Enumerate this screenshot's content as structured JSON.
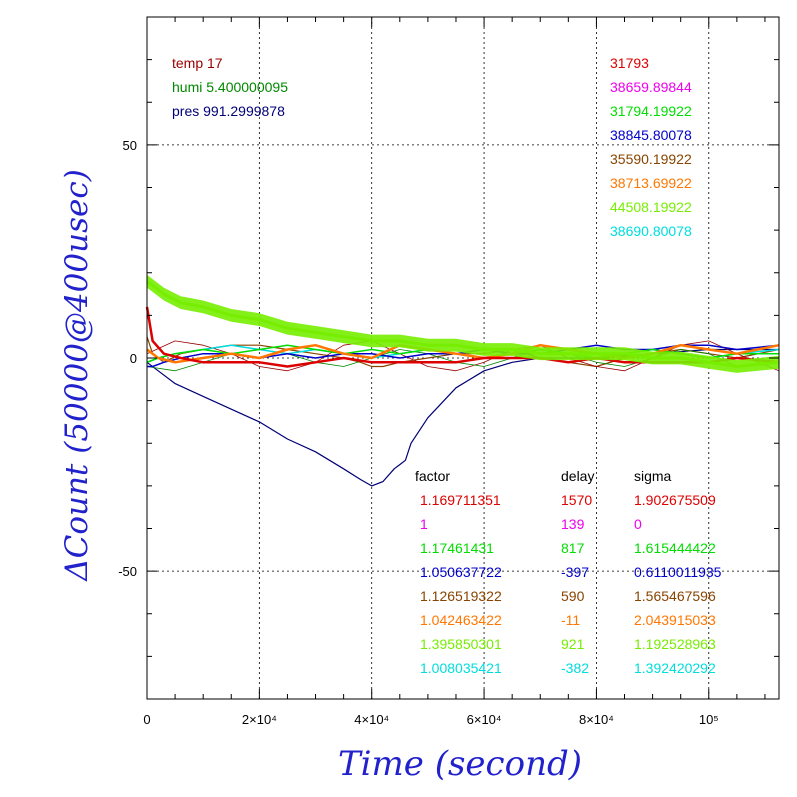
{
  "chart_data": {
    "type": "line",
    "xlabel": "Time (second)",
    "ylabel": "ΔCount (50000@400usec)",
    "xlim": [
      0,
      112500
    ],
    "ylim": [
      -80,
      80
    ],
    "grid": true,
    "x_ticks": [
      {
        "value": 0,
        "label": "0"
      },
      {
        "value": 20000,
        "label": "2×10⁴"
      },
      {
        "value": 40000,
        "label": "4×10⁴"
      },
      {
        "value": 60000,
        "label": "6×10⁴"
      },
      {
        "value": 80000,
        "label": "8×10⁴"
      },
      {
        "value": 100000,
        "label": "10⁵"
      }
    ],
    "y_ticks": [
      {
        "value": 50,
        "label": "50"
      },
      {
        "value": 0,
        "label": "0"
      },
      {
        "value": -50,
        "label": "-50"
      }
    ],
    "env": [
      {
        "text": "temp 17",
        "color": "#990000"
      },
      {
        "text": "humi 5.400000095",
        "color": "#008800"
      },
      {
        "text": "pres 991.2999878",
        "color": "#000077"
      }
    ],
    "counts": [
      {
        "text": "31793",
        "color": "#dd0000"
      },
      {
        "text": "38659.89844",
        "color": "#ee00ee"
      },
      {
        "text": "31794.19922",
        "color": "#00dd00"
      },
      {
        "text": "38845.80078",
        "color": "#0000cc"
      },
      {
        "text": "35590.19922",
        "color": "#884400"
      },
      {
        "text": "38713.69922",
        "color": "#ff7700"
      },
      {
        "text": "44508.19922",
        "color": "#77ee00"
      },
      {
        "text": "38690.80078",
        "color": "#00dddd"
      }
    ],
    "table_headers": {
      "factor": "factor",
      "delay": "delay",
      "sigma": "sigma"
    },
    "table_rows": [
      {
        "factor": "1.169711351",
        "delay": "1570",
        "sigma": "1.902675509",
        "color": "#dd0000"
      },
      {
        "factor": "1",
        "delay": "139",
        "sigma": "0",
        "color": "#ee00ee"
      },
      {
        "factor": "1.17461431",
        "delay": "817",
        "sigma": "1.615444422",
        "color": "#00dd00"
      },
      {
        "factor": "1.050637722",
        "delay": "-397",
        "sigma": "0.6110011935",
        "color": "#0000cc"
      },
      {
        "factor": "1.126519322",
        "delay": "590",
        "sigma": "1.565467596",
        "color": "#884400"
      },
      {
        "factor": "1.042463422",
        "delay": "-11",
        "sigma": "2.043915033",
        "color": "#ff7700"
      },
      {
        "factor": "1.395850301",
        "delay": "921",
        "sigma": "1.192528963",
        "color": "#77ee00"
      },
      {
        "factor": "1.008035421",
        "delay": "-382",
        "sigma": "1.392420292",
        "color": "#00dddd"
      }
    ],
    "series": [
      {
        "color": "#000077",
        "width": 1.2,
        "x": [
          0,
          2000,
          5000,
          10000,
          15000,
          20000,
          25000,
          30000,
          35000,
          38000,
          40000,
          42000,
          44000,
          45000,
          46000,
          47000,
          50000,
          55000,
          60000,
          65000,
          70000,
          80000,
          90000,
          100000,
          112500
        ],
        "y": [
          -1,
          -3,
          -6,
          -9,
          -12,
          -15,
          -19,
          -22,
          -26,
          -28.5,
          -30,
          -29,
          -26,
          -25,
          -24,
          -20,
          -14,
          -7,
          -3,
          -1,
          0,
          0,
          1,
          2,
          2
        ]
      },
      {
        "color": "#884400",
        "width": 1.2,
        "x": [
          0,
          1000,
          3000,
          6000,
          10000,
          15000,
          20000,
          25000,
          30000,
          35000,
          38000,
          40000,
          42000,
          45000,
          50000,
          55000,
          60000,
          65000,
          70000,
          75000,
          80000,
          85000,
          90000,
          95000,
          100000,
          105000,
          112500
        ],
        "y": [
          5,
          1,
          -1,
          1,
          2,
          3,
          3,
          2,
          1,
          0,
          -1,
          -2,
          -2,
          -1,
          0,
          1,
          1,
          2,
          0,
          -1,
          -2,
          0,
          1,
          2,
          1,
          0,
          2
        ]
      },
      {
        "color": "#990000",
        "width": 0.8,
        "x": [
          0,
          5000,
          10000,
          15000,
          20000,
          25000,
          30000,
          35000,
          40000,
          45000,
          50000,
          55000,
          60000,
          65000,
          70000,
          75000,
          80000,
          85000,
          90000,
          95000,
          100000,
          105000,
          112500
        ],
        "y": [
          1,
          4,
          3,
          1,
          -2,
          -3,
          -1,
          3,
          4,
          1,
          -2,
          -3,
          -1,
          2,
          3,
          0,
          -2,
          -3,
          0,
          3,
          4,
          1,
          -3
        ]
      },
      {
        "color": "#008800",
        "width": 0.8,
        "x": [
          0,
          5000,
          10000,
          15000,
          20000,
          25000,
          30000,
          35000,
          40000,
          45000,
          50000,
          55000,
          60000,
          65000,
          70000,
          75000,
          80000,
          85000,
          90000,
          95000,
          100000,
          105000,
          112500
        ],
        "y": [
          -2,
          -3,
          -1,
          1,
          2,
          1,
          -1,
          -2,
          0,
          2,
          1,
          -1,
          -2,
          0,
          2,
          1,
          -1,
          -2,
          0,
          2,
          1,
          -2,
          -1
        ]
      },
      {
        "color": "#00dddd",
        "width": 1.5,
        "x": [
          0,
          2000,
          5000,
          10000,
          15000,
          20000,
          25000,
          30000,
          35000,
          40000,
          45000,
          50000,
          55000,
          60000,
          65000,
          70000,
          75000,
          80000,
          85000,
          90000,
          95000,
          100000,
          105000,
          112500
        ],
        "y": [
          -1,
          0,
          1,
          2,
          3,
          2,
          1,
          2,
          1,
          0,
          1,
          2,
          1,
          0,
          1,
          2,
          1,
          0,
          1,
          2,
          1,
          0,
          1,
          2
        ]
      },
      {
        "color": "#0000cc",
        "width": 1.5,
        "x": [
          0,
          1000,
          3000,
          6000,
          10000,
          15000,
          20000,
          25000,
          30000,
          35000,
          40000,
          45000,
          50000,
          55000,
          60000,
          65000,
          70000,
          75000,
          80000,
          85000,
          90000,
          95000,
          100000,
          105000,
          112500
        ],
        "y": [
          -2,
          -2,
          -1,
          0,
          1,
          1,
          0,
          1,
          0,
          1,
          1,
          0,
          1,
          1,
          2,
          1,
          1,
          2,
          3,
          2,
          2,
          3,
          3,
          2,
          3
        ]
      },
      {
        "color": "#00dd00",
        "width": 1.5,
        "x": [
          0,
          2000,
          5000,
          10000,
          15000,
          20000,
          25000,
          30000,
          35000,
          40000,
          45000,
          50000,
          55000,
          60000,
          65000,
          70000,
          75000,
          80000,
          85000,
          90000,
          95000,
          100000,
          105000,
          112500
        ],
        "y": [
          -1,
          0,
          1,
          2,
          1,
          2,
          3,
          2,
          1,
          2,
          1,
          2,
          1,
          0,
          1,
          2,
          1,
          0,
          1,
          2,
          1,
          0,
          1,
          1
        ]
      },
      {
        "color": "#ff7700",
        "width": 2.5,
        "x": [
          0,
          2000,
          5000,
          10000,
          15000,
          20000,
          25000,
          30000,
          35000,
          40000,
          45000,
          50000,
          55000,
          60000,
          65000,
          70000,
          75000,
          80000,
          85000,
          90000,
          95000,
          100000,
          105000,
          112500
        ],
        "y": [
          2,
          0,
          -1,
          0,
          1,
          0,
          2,
          3,
          1,
          0,
          3,
          2,
          1,
          0,
          1,
          3,
          2,
          1,
          0,
          1,
          3,
          2,
          1,
          3
        ]
      },
      {
        "color": "#dd0000",
        "width": 2.5,
        "x": [
          0,
          1000,
          3000,
          6000,
          10000,
          15000,
          20000,
          25000,
          30000,
          35000,
          40000,
          45000,
          50000,
          55000,
          60000,
          65000,
          70000,
          75000,
          80000,
          85000,
          90000,
          95000,
          100000,
          105000,
          112500
        ],
        "y": [
          12,
          4,
          1,
          0,
          -1,
          -1,
          -1,
          -2,
          -1,
          0,
          -1,
          -1,
          -1,
          -1,
          0,
          0,
          0,
          -1,
          0,
          -1,
          -1,
          -1,
          -1,
          0,
          -1
        ]
      },
      {
        "color": "#77ee00",
        "width": 3.0,
        "band": 1.5,
        "x": [
          0,
          1000,
          3000,
          6000,
          10000,
          15000,
          20000,
          25000,
          30000,
          35000,
          40000,
          45000,
          50000,
          55000,
          60000,
          65000,
          70000,
          75000,
          80000,
          85000,
          90000,
          95000,
          100000,
          105000,
          112500
        ],
        "y": [
          18,
          17,
          15,
          13,
          12,
          10,
          9,
          7,
          6,
          5,
          4,
          4,
          3,
          3,
          2,
          2,
          1,
          1,
          1,
          1,
          0,
          0,
          -1,
          -2,
          -1
        ]
      }
    ]
  }
}
